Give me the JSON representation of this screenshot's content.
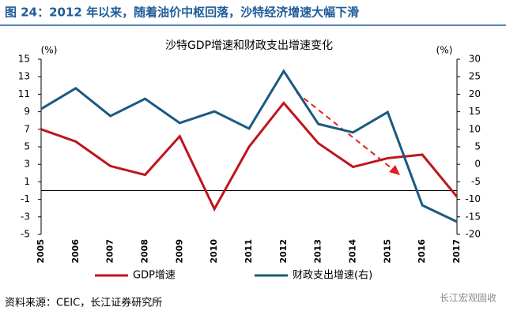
{
  "header": {
    "title": "图 24：2012 年以来，随着油价中枢回落，沙特经济增速大幅下滑"
  },
  "chart_data": {
    "type": "line",
    "title": "沙特GDP增速和财政支出增速变化",
    "y_unit": "(%)",
    "y2_unit": "(%)",
    "categories": [
      "2005",
      "2006",
      "2007",
      "2008",
      "2009",
      "2010",
      "2011",
      "2012",
      "2013",
      "2014",
      "2015",
      "2016",
      "2017"
    ],
    "series": [
      {
        "name": "GDP增速",
        "color": "#c0141b",
        "values": [
          7.0,
          5.6,
          2.8,
          1.8,
          6.2,
          -2.1,
          5.0,
          10.0,
          5.4,
          2.7,
          3.7,
          4.1,
          -0.7
        ]
      },
      {
        "name": "财政支出增速(右)",
        "color": "#1a5a80",
        "axis": "y2",
        "values": [
          15.8,
          21.7,
          13.8,
          18.7,
          11.8,
          15.1,
          10.2,
          26.6,
          11.5,
          9.1,
          14.9,
          -11.7,
          -16.4
        ]
      }
    ],
    "ylim": [
      -5,
      15
    ],
    "yticks": [
      -5,
      -3,
      -1,
      1,
      3,
      5,
      7,
      9,
      11,
      13,
      15
    ],
    "y2lim": [
      -20,
      30
    ],
    "y2ticks": [
      -20,
      -15,
      -10,
      -5,
      0,
      5,
      10,
      15,
      20,
      25,
      30
    ]
  },
  "footer": {
    "source": "资料来源：CEIC，长江证券研究所",
    "watermark": "长江宏观固收"
  }
}
